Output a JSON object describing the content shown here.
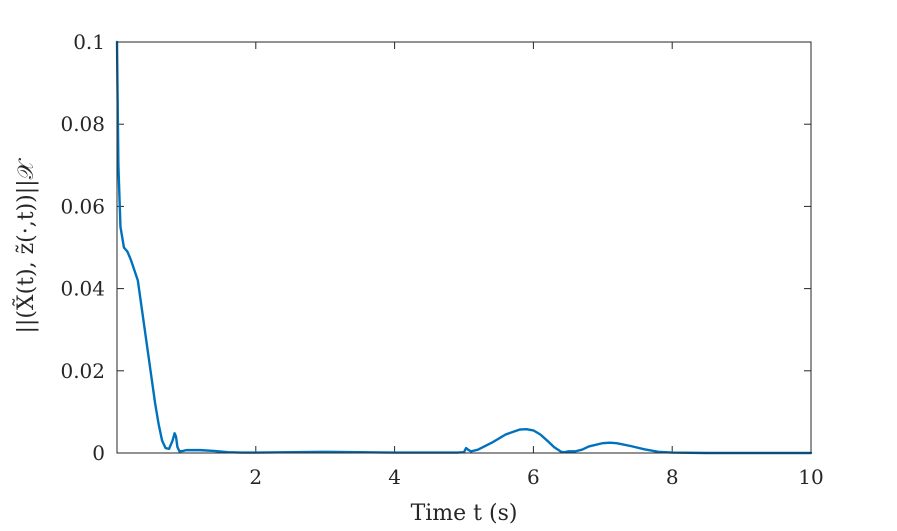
{
  "chart_data": {
    "type": "line",
    "title": "",
    "xlabel": "Time t (s)",
    "ylabel": "||(X̃(t), z̃(·,t))||𝒳",
    "xlim": [
      0,
      10
    ],
    "ylim": [
      0,
      0.1
    ],
    "xticks": [
      2,
      4,
      6,
      8,
      10
    ],
    "xtick_labels": [
      "2",
      "4",
      "6",
      "8",
      "10"
    ],
    "yticks": [
      0,
      0.02,
      0.04,
      0.06,
      0.08,
      0.1
    ],
    "ytick_labels": [
      "0",
      "0.02",
      "0.04",
      "0.06",
      "0.08",
      "0.1"
    ],
    "grid": false,
    "legend": "none",
    "series": [
      {
        "color": "#0072BD",
        "x": [
          0.0,
          0.02,
          0.05,
          0.1,
          0.15,
          0.2,
          0.3,
          0.4,
          0.5,
          0.55,
          0.6,
          0.65,
          0.7,
          0.75,
          0.8,
          0.83,
          0.85,
          0.87,
          0.9,
          0.95,
          1.0,
          1.2,
          1.4,
          1.6,
          1.8,
          2.0,
          2.5,
          3.0,
          3.5,
          4.0,
          4.5,
          4.9,
          5.0,
          5.03,
          5.06,
          5.1,
          5.2,
          5.4,
          5.6,
          5.8,
          5.9,
          6.0,
          6.1,
          6.2,
          6.3,
          6.4,
          6.45,
          6.5,
          6.6,
          6.7,
          6.8,
          7.0,
          7.1,
          7.2,
          7.4,
          7.6,
          7.8,
          8.0,
          8.5,
          9.0,
          9.5,
          10.0
        ],
        "y": [
          0.1,
          0.07,
          0.055,
          0.05,
          0.049,
          0.047,
          0.042,
          0.03,
          0.018,
          0.012,
          0.007,
          0.003,
          0.0012,
          0.001,
          0.003,
          0.0048,
          0.004,
          0.0015,
          0.0004,
          0.0005,
          0.0007,
          0.0007,
          0.0005,
          0.0002,
          0.0001,
          0.0001,
          0.0002,
          0.0003,
          0.0002,
          0.0001,
          0.0001,
          0.0001,
          0.0002,
          0.0012,
          0.0008,
          0.0004,
          0.0008,
          0.0025,
          0.0045,
          0.0057,
          0.0058,
          0.0055,
          0.0045,
          0.003,
          0.0014,
          0.0003,
          0.0002,
          0.0004,
          0.0004,
          0.0008,
          0.0016,
          0.0024,
          0.0025,
          0.0024,
          0.0017,
          0.0009,
          0.0003,
          0.0001,
          0.0,
          0.0,
          0.0,
          0.0
        ]
      }
    ]
  }
}
